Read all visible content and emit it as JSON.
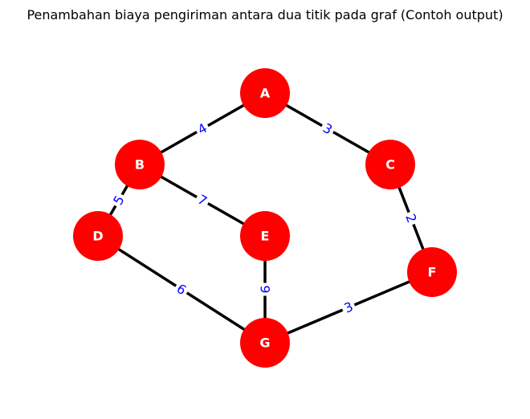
{
  "title": "Penambahan biaya pengiriman antara dua titik pada graf (Contoh output)",
  "colors": {
    "node_fill": "#ff0000",
    "node_text": "#ffffff",
    "edge_stroke": "#000000",
    "weight_text": "#0000ff",
    "background": "#ffffff"
  },
  "nodes": [
    {
      "id": "A",
      "label": "A"
    },
    {
      "id": "B",
      "label": "B"
    },
    {
      "id": "C",
      "label": "C"
    },
    {
      "id": "D",
      "label": "D"
    },
    {
      "id": "E",
      "label": "E"
    },
    {
      "id": "F",
      "label": "F"
    },
    {
      "id": "G",
      "label": "G"
    }
  ],
  "edges": [
    {
      "source": "A",
      "target": "B",
      "weight": "4"
    },
    {
      "source": "A",
      "target": "C",
      "weight": "3"
    },
    {
      "source": "B",
      "target": "D",
      "weight": "5"
    },
    {
      "source": "B",
      "target": "E",
      "weight": "7"
    },
    {
      "source": "C",
      "target": "F",
      "weight": "2"
    },
    {
      "source": "D",
      "target": "G",
      "weight": "6"
    },
    {
      "source": "E",
      "target": "G",
      "weight": "9"
    },
    {
      "source": "F",
      "target": "G",
      "weight": "3"
    }
  ]
}
